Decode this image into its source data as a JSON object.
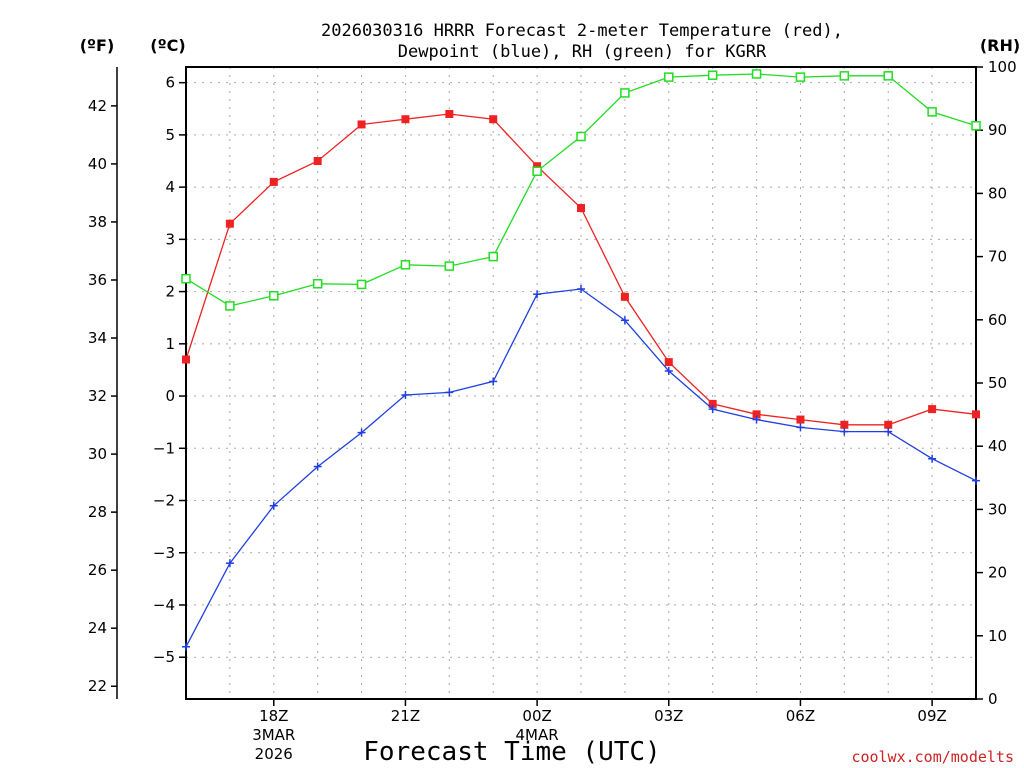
{
  "colors": {
    "temperature": "#ee2222",
    "dewpoint": "#1f3fe0",
    "rh": "#22dd22",
    "grid": "#aaaaaa",
    "axis": "#000000",
    "credit": "#cc2222"
  },
  "chart_data": {
    "type": "line",
    "title_line1": "2026030316 HRRR Forecast 2-meter Temperature (red),",
    "title_line2": "Dewpoint (blue), RH (green) for KGRR",
    "xlabel": "Forecast Time (UTC)",
    "credit": "coolwx.com/modelts",
    "unit_labels": {
      "fahrenheit": "(ºF)",
      "celsius": "(ºC)",
      "rh": "(RH)"
    },
    "x_hours": [
      16,
      17,
      18,
      19,
      20,
      21,
      22,
      23,
      24,
      25,
      26,
      27,
      28,
      29,
      30,
      31,
      32,
      33,
      34
    ],
    "x_range": [
      16,
      34
    ],
    "x_ticks": [
      {
        "hour": 18,
        "lines": [
          "18Z",
          "3MAR",
          "2026"
        ]
      },
      {
        "hour": 21,
        "lines": [
          "21Z"
        ]
      },
      {
        "hour": 24,
        "lines": [
          "00Z",
          "4MAR"
        ]
      },
      {
        "hour": 27,
        "lines": [
          "03Z"
        ]
      },
      {
        "hour": 30,
        "lines": [
          "06Z"
        ]
      },
      {
        "hour": 33,
        "lines": [
          "09Z"
        ]
      }
    ],
    "celsius_axis": {
      "range": [
        -5.8,
        6.3
      ],
      "ticks": [
        -5,
        -4,
        -3,
        -2,
        -1,
        0,
        1,
        2,
        3,
        4,
        5,
        6
      ]
    },
    "fahrenheit_axis": {
      "ticks": [
        22,
        24,
        26,
        28,
        30,
        32,
        34,
        36,
        38,
        40,
        42
      ]
    },
    "rh_axis": {
      "range": [
        0,
        100
      ],
      "ticks": [
        0,
        10,
        20,
        30,
        40,
        50,
        60,
        70,
        80,
        90,
        100
      ]
    },
    "series": [
      {
        "name": "Temperature (C)",
        "axis": "celsius",
        "marker": "filled-square",
        "color_key": "temperature",
        "values": [
          0.7,
          3.3,
          4.1,
          4.5,
          5.2,
          5.3,
          5.4,
          5.3,
          4.4,
          3.6,
          1.9,
          0.65,
          -0.15,
          -0.35,
          -0.45,
          -0.55,
          -0.55,
          -0.25,
          -0.35
        ]
      },
      {
        "name": "Dewpoint (C)",
        "axis": "celsius",
        "marker": "plus",
        "color_key": "dewpoint",
        "values": [
          -4.8,
          -3.2,
          -2.1,
          -1.35,
          -0.7,
          0.02,
          0.07,
          0.28,
          1.95,
          2.05,
          1.45,
          0.48,
          -0.25,
          -0.45,
          -0.6,
          -0.68,
          -0.68,
          -1.2,
          -1.62
        ]
      },
      {
        "name": "RH (%)",
        "axis": "rh",
        "marker": "open-square",
        "color_key": "rh",
        "values": [
          66.5,
          62.2,
          63.8,
          65.7,
          65.6,
          68.7,
          68.5,
          70,
          83.5,
          89,
          95.9,
          98.4,
          98.7,
          98.9,
          98.4,
          98.6,
          98.6,
          92.9,
          90.7
        ]
      }
    ]
  }
}
